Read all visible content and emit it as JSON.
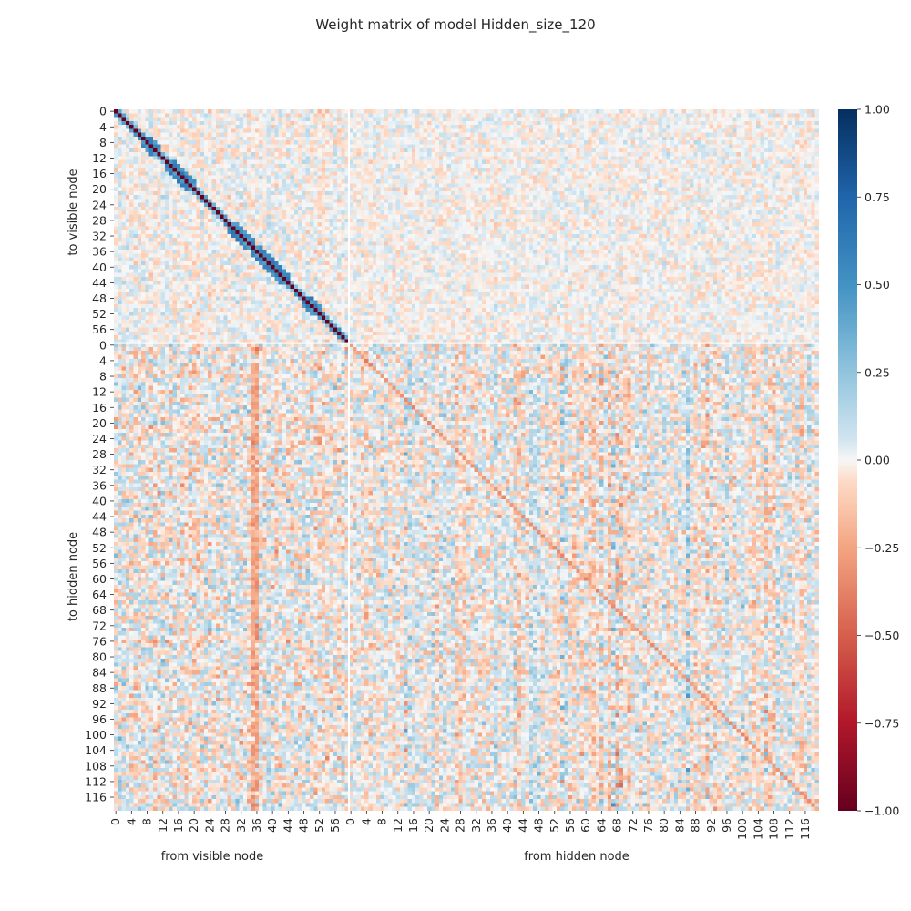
{
  "chart_data": {
    "type": "heatmap",
    "title": "Weight matrix of model Hidden_size_120",
    "colormap": "RdBu",
    "value_range": [
      -1.0,
      1.0
    ],
    "colorbar_ticks": [
      "1.00",
      "0.75",
      "0.50",
      "0.25",
      "0.00",
      "−0.25",
      "−0.50",
      "−0.75",
      "−1.00"
    ],
    "colorbar_tick_values": [
      1.0,
      0.75,
      0.5,
      0.25,
      0.0,
      -0.25,
      -0.5,
      -0.75,
      -1.0
    ],
    "blocks": {
      "visible_count": 60,
      "hidden_count": 120,
      "separator_color": "#ffffff"
    },
    "x_groups": [
      {
        "label": "from visible node",
        "ticks": [
          "0",
          "4",
          "8",
          "12",
          "16",
          "20",
          "24",
          "28",
          "32",
          "36",
          "40",
          "44",
          "48",
          "52",
          "56"
        ]
      },
      {
        "label": "from hidden node",
        "ticks": [
          "0",
          "4",
          "8",
          "12",
          "16",
          "20",
          "24",
          "28",
          "32",
          "36",
          "40",
          "44",
          "48",
          "52",
          "56",
          "60",
          "64",
          "68",
          "72",
          "76",
          "80",
          "84",
          "88",
          "92",
          "96",
          "100",
          "104",
          "108",
          "112",
          "116"
        ]
      }
    ],
    "y_groups": [
      {
        "label": "to visible node",
        "ticks": [
          "0",
          "4",
          "8",
          "12",
          "16",
          "20",
          "24",
          "28",
          "32",
          "36",
          "40",
          "44",
          "48",
          "52",
          "56"
        ]
      },
      {
        "label": "to hidden node",
        "ticks": [
          "0",
          "4",
          "8",
          "12",
          "16",
          "20",
          "24",
          "28",
          "32",
          "36",
          "40",
          "44",
          "48",
          "52",
          "56",
          "60",
          "64",
          "68",
          "72",
          "76",
          "80",
          "84",
          "88",
          "92",
          "96",
          "100",
          "104",
          "108",
          "112",
          "116"
        ]
      }
    ],
    "patterns": {
      "visible_visible_diagonal": -1.0,
      "visible_visible_band": 0.6,
      "visible_visible_band_blocks": [
        [
          8,
          10
        ],
        [
          14,
          19
        ],
        [
          30,
          34
        ],
        [
          36,
          43
        ],
        [
          49,
          51
        ]
      ],
      "visible_visible_noise": 0.18,
      "visible_hidden_noise": 0.09,
      "hidden_visible_noise": 0.2,
      "hidden_visible_strong_column": 35,
      "hidden_hidden_diagonal": -0.3,
      "hidden_hidden_noise": 0.22,
      "hidden_hidden_emphasis_columns": [
        14,
        42,
        54,
        64,
        67,
        68,
        69,
        86,
        91,
        106
      ]
    }
  }
}
